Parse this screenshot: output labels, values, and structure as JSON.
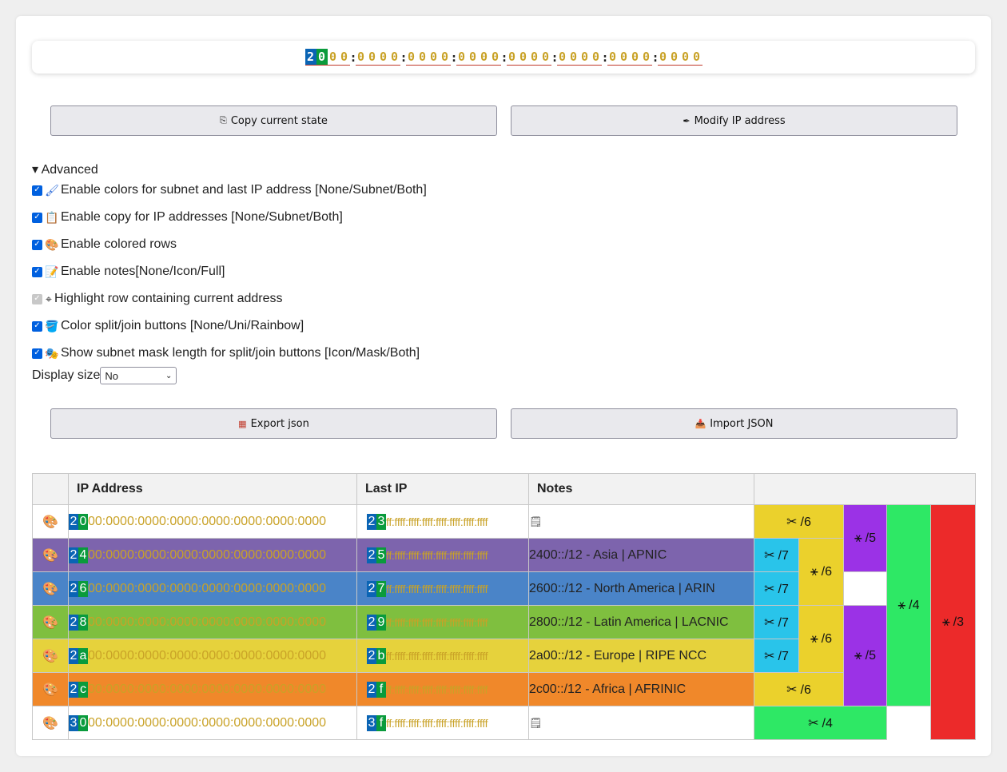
{
  "ip_bar": {
    "hextets": [
      [
        "2",
        "0",
        "0",
        "0"
      ],
      [
        "0",
        "0",
        "0",
        "0"
      ],
      [
        "0",
        "0",
        "0",
        "0"
      ],
      [
        "0",
        "0",
        "0",
        "0"
      ],
      [
        "0",
        "0",
        "0",
        "0"
      ],
      [
        "0",
        "0",
        "0",
        "0"
      ],
      [
        "0",
        "0",
        "0",
        "0"
      ],
      [
        "0",
        "0",
        "0",
        "0"
      ]
    ],
    "separator": ":",
    "colors": {
      "subnet_digit_1": "#0a64b4",
      "subnet_digit_2": "#0a9b3c",
      "rest": "#c9a227"
    }
  },
  "buttons": {
    "copy_state": {
      "icon": "clipboard-icon",
      "label": "Copy current state"
    },
    "modify_ip": {
      "icon": "pen-icon",
      "label": "Modify IP address"
    },
    "export_json": {
      "icon": "table-icon",
      "label": "Export json"
    },
    "import_json": {
      "icon": "inbox-icon",
      "label": "Import JSON"
    }
  },
  "advanced": {
    "summary": "▾ Advanced",
    "options": [
      {
        "checked": true,
        "disabled": false,
        "icon": "brush-icon",
        "label": "Enable colors for subnet and last IP address [None/Subnet/Both]"
      },
      {
        "checked": true,
        "disabled": false,
        "icon": "clipboard-icon",
        "label": "Enable copy for IP addresses [None/Subnet/Both]"
      },
      {
        "checked": true,
        "disabled": false,
        "icon": "palette-icon",
        "label": "Enable colored rows"
      },
      {
        "checked": true,
        "disabled": false,
        "icon": "memo-icon",
        "label": "Enable notes[None/Icon/Full]"
      },
      {
        "checked": true,
        "disabled": true,
        "icon": "crosshair-icon",
        "label": "Highlight row containing current address"
      },
      {
        "checked": true,
        "disabled": false,
        "icon": "bucket-icon",
        "label": "Color split/join buttons [None/Uni/Rainbow]"
      },
      {
        "checked": true,
        "disabled": false,
        "icon": "masks-icon",
        "label": "Show subnet mask length for split/join buttons [Icon/Mask/Both]"
      }
    ],
    "display_size_label": "Display size",
    "display_size_value": "No"
  },
  "table": {
    "headers": [
      "",
      "IP Address",
      "Last IP",
      "Notes",
      ""
    ],
    "rows": [
      {
        "bg": "#ffffff",
        "text": "#c9a227",
        "ip_d1": "2",
        "ip_d2": "0",
        "ip_rest": "00:0000:0000:0000:0000:0000:0000:0000",
        "last_d1": "2",
        "last_d2": "3",
        "last_rest": "ff:ffff:ffff:ffff:ffff:ffff:ffff:ffff",
        "note": "",
        "note_icon": "note-icon"
      },
      {
        "bg": "#7d64ad",
        "text": "#c9a227",
        "ip_d1": "2",
        "ip_d2": "4",
        "ip_rest": "00:0000:0000:0000:0000:0000:0000:0000",
        "last_d1": "2",
        "last_d2": "5",
        "last_rest": "ff:ffff:ffff:ffff:ffff:ffff:ffff:ffff",
        "note": "2400::/12 - Asia | APNIC"
      },
      {
        "bg": "#4a84c8",
        "text": "#c9a227",
        "ip_d1": "2",
        "ip_d2": "6",
        "ip_rest": "00:0000:0000:0000:0000:0000:0000:0000",
        "last_d1": "2",
        "last_d2": "7",
        "last_rest": "ff:ffff:ffff:ffff:ffff:ffff:ffff:ffff",
        "note": "2600::/12 - North America | ARIN"
      },
      {
        "bg": "#7fbf3f",
        "text": "#c9a227",
        "ip_d1": "2",
        "ip_d2": "8",
        "ip_rest": "00:0000:0000:0000:0000:0000:0000:0000",
        "last_d1": "2",
        "last_d2": "9",
        "last_rest": "ff:ffff:ffff:ffff:ffff:ffff:ffff:ffff",
        "note": "2800::/12 - Latin America | LACNIC"
      },
      {
        "bg": "#e6d23c",
        "text": "#c9a227",
        "ip_d1": "2",
        "ip_d2": "a",
        "ip_rest": "00:0000:0000:0000:0000:0000:0000:0000",
        "last_d1": "2",
        "last_d2": "b",
        "last_rest": "ff:ffff:ffff:ffff:ffff:ffff:ffff:ffff",
        "note": "2a00::/12 - Europe | RIPE NCC"
      },
      {
        "bg": "#f0882a",
        "text": "#c9a227",
        "ip_d1": "2",
        "ip_d2": "c",
        "ip_rest": "00:0000:0000:0000:0000:0000:0000:0000",
        "last_d1": "2",
        "last_d2": "f",
        "last_rest": "ff:ffff:ffff:ffff:ffff:ffff:ffff:ffff",
        "note": "2c00::/12 - Africa | AFRINIC"
      },
      {
        "bg": "#ffffff",
        "text": "#c9a227",
        "ip_d1": "3",
        "ip_d2": "0",
        "ip_rest": "00:0000:0000:0000:0000:0000:0000:0000",
        "last_d1": "3",
        "last_d2": "f",
        "last_rest": "ff:ffff:ffff:ffff:ffff:ffff:ffff:ffff",
        "note": "",
        "note_icon": "note-icon"
      }
    ],
    "split_join": {
      "colors": {
        "/7": "#29c4ea",
        "/6": "#ebd12c",
        "/5": "#9b32e6",
        "/4": "#2ee865",
        "/3": "#ec2a2a"
      },
      "cells": [
        {
          "label": "/6",
          "icon": "scissors-icon"
        },
        {
          "label": "/5",
          "icon": "join-icon"
        },
        {
          "label": "/4",
          "icon": "join-icon"
        },
        {
          "label": "/3",
          "icon": "join-icon"
        },
        {
          "label": "/7",
          "icon": "scissors-icon"
        },
        {
          "label": "/6",
          "icon": "join-icon"
        },
        {
          "label": "/7",
          "icon": "scissors-icon"
        },
        {
          "label": "/7",
          "icon": "scissors-icon"
        },
        {
          "label": "/6",
          "icon": "join-icon"
        },
        {
          "label": "/5",
          "icon": "join-icon"
        },
        {
          "label": "/7",
          "icon": "scissors-icon"
        },
        {
          "label": "/6",
          "icon": "scissors-icon"
        },
        {
          "label": "/4",
          "icon": "scissors-icon"
        }
      ]
    }
  }
}
